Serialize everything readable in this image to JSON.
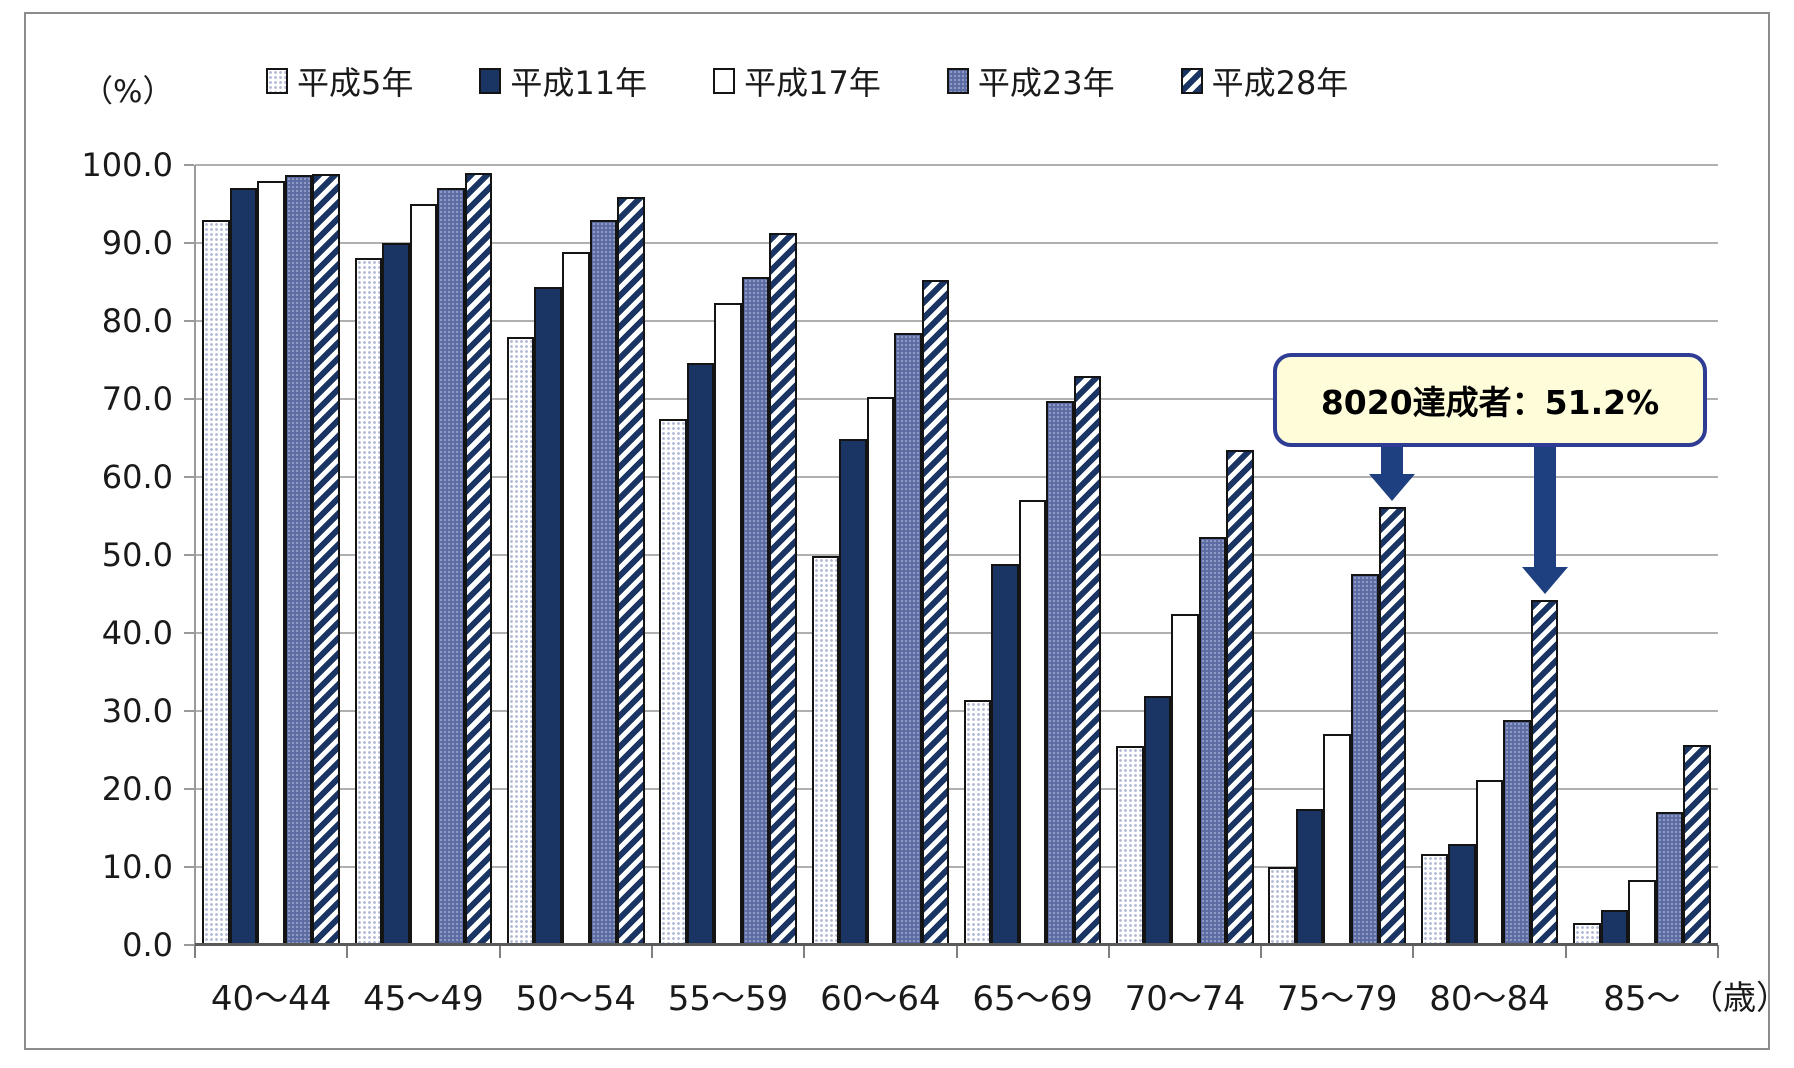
{
  "chart_data": {
    "type": "bar",
    "title": "",
    "y_unit": "（%）",
    "x_unit": "（歳）",
    "ylim": [
      0,
      100
    ],
    "ytick_step": 10,
    "ytick_labels": [
      "100.0",
      "90.0",
      "80.0",
      "70.0",
      "60.0",
      "50.0",
      "40.0",
      "30.0",
      "20.0",
      "10.0",
      "0.0"
    ],
    "grid": true,
    "legend_position": "top",
    "categories": [
      "40～44",
      "45～49",
      "50～54",
      "55～59",
      "60～64",
      "65～69",
      "70～74",
      "75～79",
      "80～84",
      "85～"
    ],
    "series": [
      {
        "key": "h5",
        "name": "平成5年",
        "pattern": "dots-light",
        "values": [
          92.9,
          88.1,
          77.9,
          67.5,
          49.9,
          31.4,
          25.5,
          10.0,
          11.7,
          2.8
        ]
      },
      {
        "key": "h11",
        "name": "平成11年",
        "pattern": "solid-navy",
        "values": [
          97.1,
          90.0,
          84.3,
          74.6,
          64.9,
          48.8,
          31.9,
          17.5,
          13.0,
          4.5
        ]
      },
      {
        "key": "h17",
        "name": "平成17年",
        "pattern": "plain-white",
        "values": [
          98.0,
          95.0,
          88.9,
          82.3,
          70.3,
          57.1,
          42.4,
          27.1,
          21.1,
          8.3
        ]
      },
      {
        "key": "h23",
        "name": "平成23年",
        "pattern": "dots-slate",
        "values": [
          98.7,
          97.1,
          93.0,
          85.7,
          78.4,
          69.7,
          52.3,
          47.6,
          28.9,
          17.0
        ]
      },
      {
        "key": "h28",
        "name": "平成28年",
        "pattern": "diag-stripes",
        "values": [
          98.8,
          99.0,
          95.9,
          91.3,
          85.2,
          73.0,
          63.4,
          56.1,
          44.2,
          25.7
        ]
      }
    ],
    "annotation": {
      "text": "8020達成者：51.2%",
      "targets": [
        {
          "category": "75～79",
          "series": "平成28年"
        },
        {
          "category": "80～84",
          "series": "平成28年"
        }
      ]
    }
  },
  "theme": {
    "navy": "#1a3464",
    "slate": "#5c6ca2",
    "slate_dot": "#8d98c4",
    "dot": "#b6bdd8",
    "grid": "#b0b0b0",
    "axis": "#9a9a9a",
    "baseline": "#5a5a5a",
    "arrow": "#1f4080",
    "anno_border": "#2e3c94",
    "anno_bg": "#fffcd9",
    "frame_border": "#8c8c8c",
    "text": "#1a1a1a"
  }
}
